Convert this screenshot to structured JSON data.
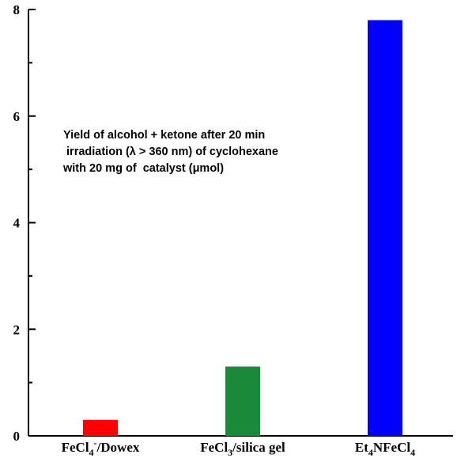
{
  "chart_data": {
    "type": "bar",
    "categories": [
      "FeCl4-/Dowex",
      "FeCl3/silica gel",
      "Et4NFeCl4"
    ],
    "category_labels": [
      {
        "parts": [
          {
            "t": "FeCl"
          },
          {
            "t": "4",
            "sub": true
          },
          {
            "t": "-",
            "sup": true
          },
          {
            "t": "/Dowex"
          }
        ]
      },
      {
        "parts": [
          {
            "t": "FeCl"
          },
          {
            "t": "3",
            "sub": true
          },
          {
            "t": "/silica gel"
          }
        ]
      },
      {
        "parts": [
          {
            "t": "Et"
          },
          {
            "t": "4",
            "sub": true
          },
          {
            "t": "NFeCl"
          },
          {
            "t": "4",
            "sub": true
          }
        ]
      }
    ],
    "values": [
      0.3,
      1.3,
      7.8
    ],
    "colors": [
      "#ff0000",
      "#1a8a3a",
      "#0000ff"
    ],
    "ylim": [
      0,
      8
    ],
    "yticks": [
      0,
      2,
      4,
      6,
      8
    ],
    "ytick_labels": [
      "0",
      "2",
      "4",
      "6",
      "8"
    ],
    "title": "",
    "xlabel": "",
    "ylabel": "",
    "grid": false,
    "annotation": [
      "Yield of alcohol + ketone after 20 min",
      " irradiation (λ > 360 nm) of cyclohexane",
      "with 20 mg of  catalyst (μmol)"
    ]
  }
}
